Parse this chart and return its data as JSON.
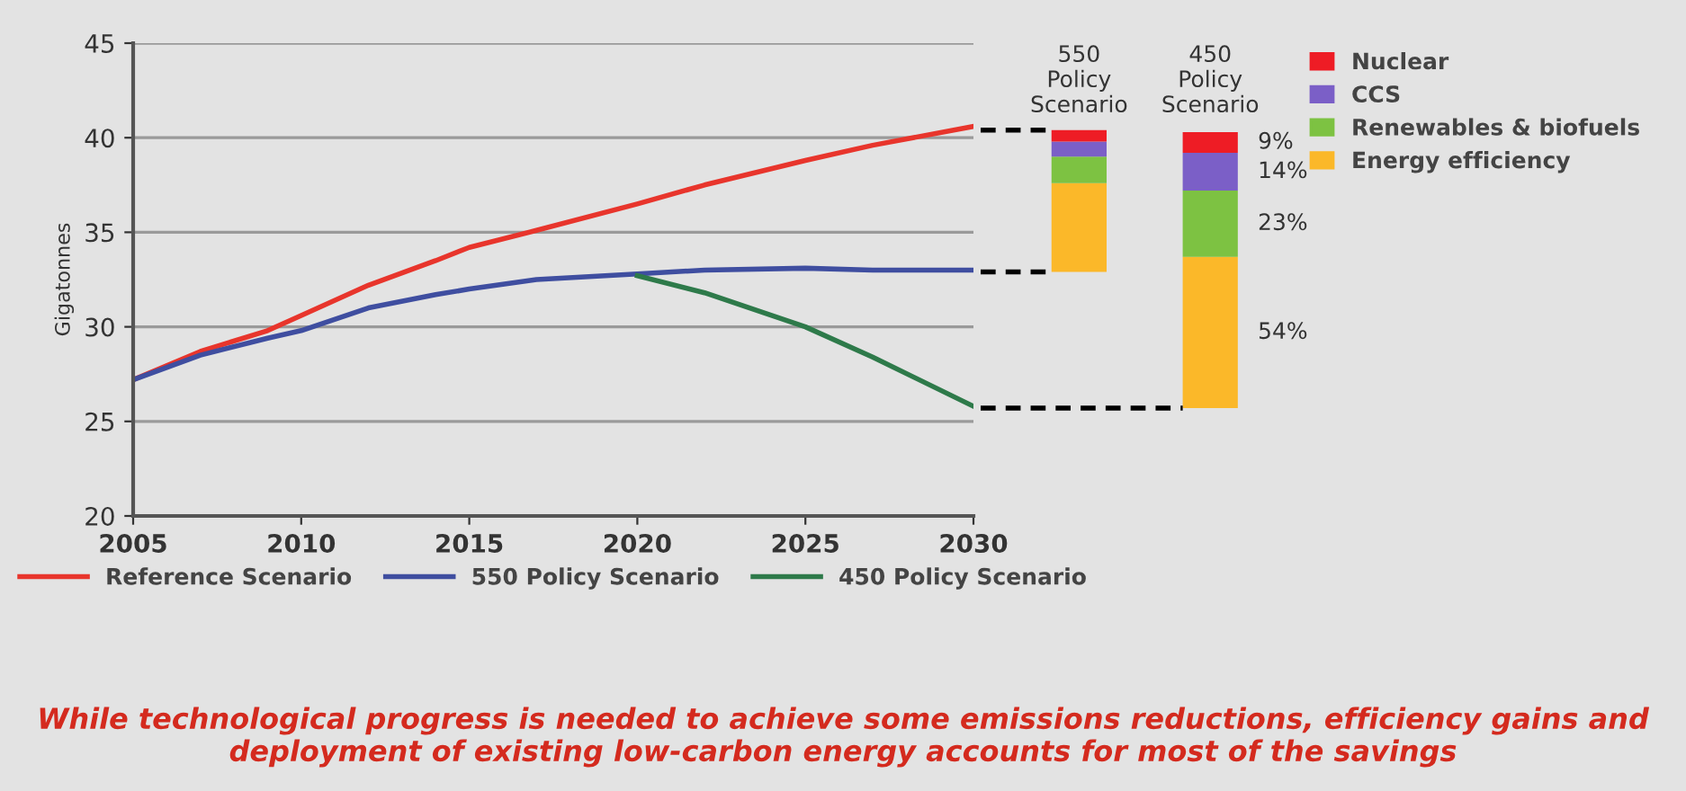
{
  "chart_data": [
    {
      "type": "line",
      "ylabel": "Gigatonnes",
      "x": [
        2005,
        2007,
        2009,
        2010,
        2012,
        2014,
        2015,
        2017,
        2020,
        2022,
        2025,
        2027,
        2030
      ],
      "xlim": [
        2005,
        2030
      ],
      "xticks": [
        2005,
        2010,
        2015,
        2020,
        2025,
        2030
      ],
      "ylim": [
        20,
        45
      ],
      "yticks": [
        20,
        25,
        30,
        35,
        40,
        45
      ],
      "grid": "y",
      "legend": "bottom",
      "series": [
        {
          "name": "Reference Scenario",
          "color": "#e8352c",
          "values": [
            27.2,
            28.7,
            29.8,
            30.6,
            32.2,
            33.5,
            34.2,
            35.1,
            36.5,
            37.5,
            38.8,
            39.6,
            40.6
          ]
        },
        {
          "name": "550 Policy Scenario",
          "color": "#3f4ea0",
          "values": [
            27.2,
            28.5,
            29.4,
            29.8,
            31.0,
            31.7,
            32.0,
            32.5,
            32.8,
            33.0,
            33.1,
            33.0,
            33.0
          ]
        },
        {
          "name": "450 Policy Scenario",
          "color": "#2e7a4a",
          "x": [
            2020,
            2022,
            2025,
            2027,
            2030
          ],
          "values": [
            32.7,
            31.8,
            30.0,
            28.4,
            25.8
          ]
        }
      ],
      "annotations": [
        "While technological progress is needed to achieve some emissions reductions, efficiency gains and deployment of existing low-carbon energy accounts for most of the savings"
      ]
    },
    {
      "type": "bar",
      "stacked": true,
      "categories": [
        "550 Policy Scenario",
        "450 Policy Scenario"
      ],
      "ylim": [
        20,
        45
      ],
      "tick_labels": "x",
      "legend": "right",
      "series": [
        {
          "name": "Energy efficiency",
          "color": "#fbb829",
          "base": [
            32.9,
            25.7
          ],
          "values": [
            4.7,
            8.0
          ]
        },
        {
          "name": "Renewables & biofuels",
          "color": "#7dc242",
          "base": [
            37.6,
            33.7
          ],
          "values": [
            1.4,
            3.5
          ]
        },
        {
          "name": "CCS",
          "color": "#7b5fc7",
          "base": [
            39.0,
            37.2
          ],
          "values": [
            0.8,
            2.0
          ]
        },
        {
          "name": "Nuclear",
          "color": "#ee1c25",
          "base": [
            39.8,
            39.2
          ],
          "values": [
            0.6,
            1.1
          ]
        }
      ],
      "ref_lines": [
        {
          "axis": "y",
          "value": 40.4,
          "color": "#000000",
          "line_style": "dashed"
        },
        {
          "axis": "y",
          "value": 32.9,
          "color": "#000000",
          "line_style": "dashed"
        },
        {
          "axis": "y",
          "value": 25.7,
          "color": "#000000",
          "line_style": "dashed"
        }
      ],
      "annotations": [
        "54%",
        "23%",
        "14%",
        "9%"
      ]
    }
  ]
}
